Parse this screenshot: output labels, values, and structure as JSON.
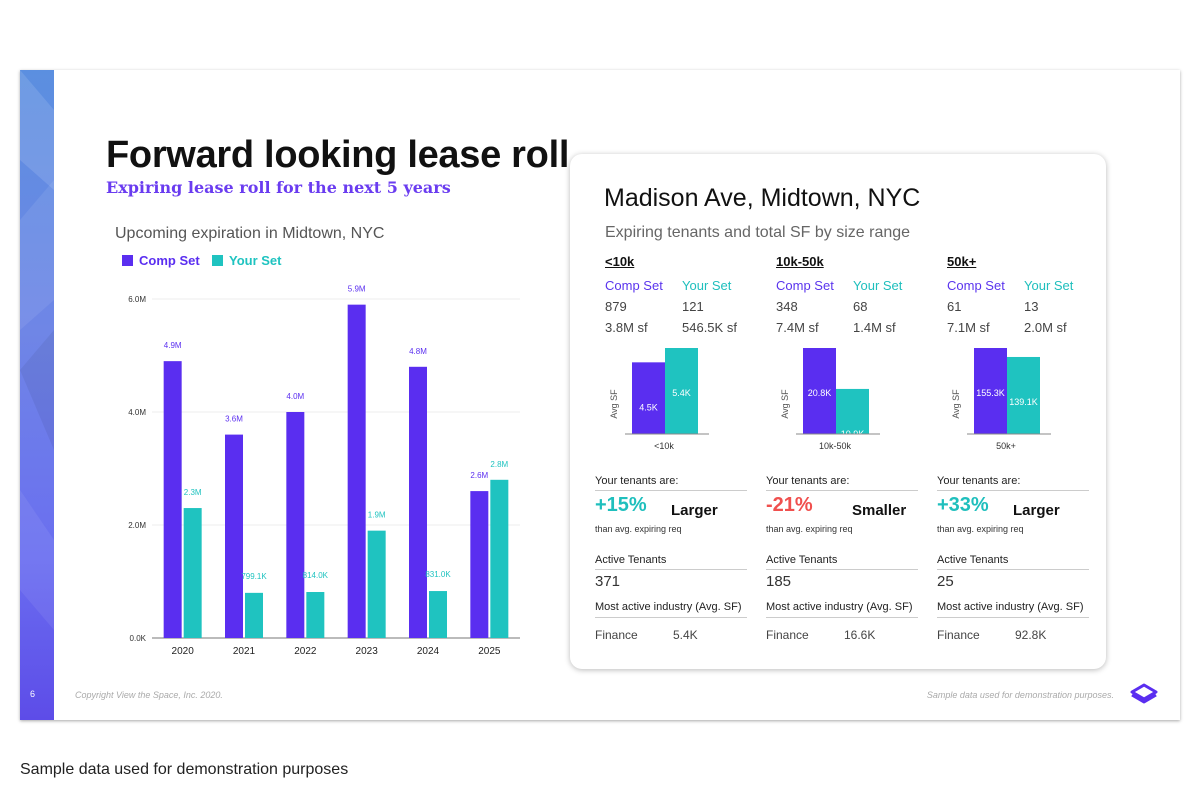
{
  "slide": {
    "page_number": "6",
    "title": "Forward looking lease roll",
    "subtitle": "Expiring lease roll for the next 5 years",
    "copyright": "Copyright View the Space, Inc. 2020.",
    "footnote": "Sample data used for demonstration purposes."
  },
  "page_footnote": "Sample data used for demonstration purposes",
  "colors": {
    "comp": "#5a2ef0",
    "your": "#1fc3c0",
    "positive": "#1fbfbd",
    "negative": "#f0504e"
  },
  "legend": {
    "comp": "Comp Set",
    "your": "Your Set"
  },
  "chart_data": {
    "type": "bar",
    "title": "Upcoming expiration in Midtown, NYC",
    "categories": [
      "2020",
      "2021",
      "2022",
      "2023",
      "2024",
      "2025"
    ],
    "ylim": [
      0,
      6.0
    ],
    "yticks": [
      "0.0K",
      "2.0M",
      "4.0M",
      "6.0M"
    ],
    "ytick_values": [
      0,
      2,
      4,
      6
    ],
    "series": [
      {
        "name": "Comp Set",
        "values": [
          4.9,
          3.6,
          4.0,
          5.9,
          4.8,
          2.6
        ],
        "labels": [
          "4.9M",
          "3.6M",
          "4.0M",
          "5.9M",
          "4.8M",
          "2.6M"
        ]
      },
      {
        "name": "Your Set",
        "values": [
          2.3,
          0.7991,
          0.814,
          1.9,
          0.831,
          2.8
        ],
        "labels": [
          "2.3M",
          "799.1K",
          "814.0K",
          "1.9M",
          "831.0K",
          "2.8M"
        ]
      }
    ],
    "grid": true,
    "legend_position": "top-left"
  },
  "card": {
    "title": "Madison Ave, Midtown, NYC",
    "subtitle": "Expiring tenants and total SF by size range",
    "columns": [
      {
        "range": "<10k",
        "comp_label": "Comp Set",
        "your_label": "Your Set",
        "comp_count": "879",
        "your_count": "121",
        "comp_sf": "3.8M sf",
        "your_sf": "546.5K sf",
        "mini_chart": {
          "ylabel": "Avg SF",
          "xlabel": "<10k",
          "values": [
            4.5,
            5.4
          ],
          "labels": [
            "4.5K",
            "5.4K"
          ]
        },
        "tenants_label": "Your tenants are:",
        "pct": "+15%",
        "pct_sign": "positive",
        "word": "Larger",
        "sub": "than avg. expiring req",
        "active_label": "Active Tenants",
        "active_value": "371",
        "industry_label": "Most active industry (Avg. SF)",
        "industry_name": "Finance",
        "industry_value": "5.4K"
      },
      {
        "range": "10k-50k",
        "comp_label": "Comp Set",
        "your_label": "Your Set",
        "comp_count": "348",
        "your_count": "68",
        "comp_sf": "7.4M sf",
        "your_sf": "1.4M sf",
        "mini_chart": {
          "ylabel": "Avg SF",
          "xlabel": "10k-50k",
          "values": [
            20.8,
            10.9
          ],
          "labels": [
            "20.8K",
            "10.9K"
          ]
        },
        "tenants_label": "Your tenants are:",
        "pct": "-21%",
        "pct_sign": "negative",
        "word": "Smaller",
        "sub": "than avg. expiring req",
        "active_label": "Active Tenants",
        "active_value": "185",
        "industry_label": "Most active industry (Avg. SF)",
        "industry_name": "Finance",
        "industry_value": "16.6K"
      },
      {
        "range": "50k+",
        "comp_label": "Comp Set",
        "your_label": "Your Set",
        "comp_count": "61",
        "your_count": "13",
        "comp_sf": "7.1M sf",
        "your_sf": "2.0M sf",
        "mini_chart": {
          "ylabel": "Avg SF",
          "xlabel": "50k+",
          "values": [
            155.3,
            139.1
          ],
          "labels": [
            "155.3K",
            "139.1K"
          ]
        },
        "tenants_label": "Your tenants are:",
        "pct": "+33%",
        "pct_sign": "positive",
        "word": "Larger",
        "sub": "than avg. expiring req",
        "active_label": "Active Tenants",
        "active_value": "25",
        "industry_label": "Most active industry (Avg. SF)",
        "industry_name": "Finance",
        "industry_value": "92.8K"
      }
    ]
  },
  "icons": {
    "logo": "view-the-space-logo-icon"
  }
}
